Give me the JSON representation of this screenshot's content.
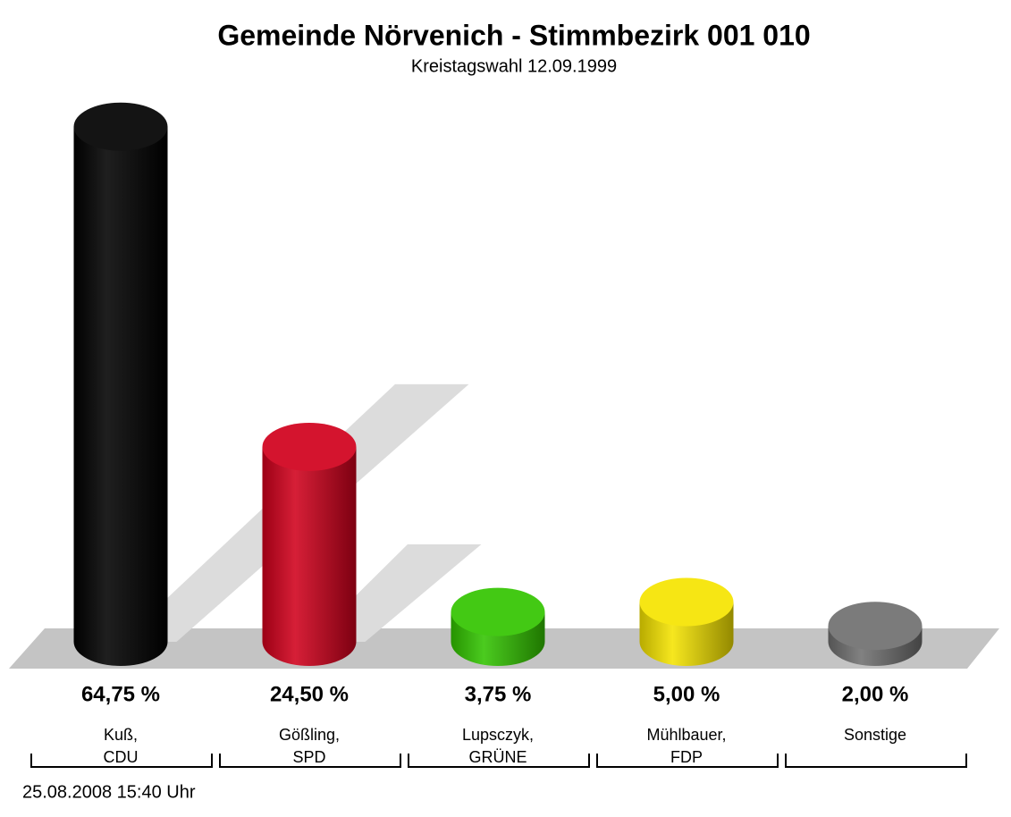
{
  "chart_data": {
    "type": "bar",
    "title": "Gemeinde Nörvenich - Stimmbezirk 001 010",
    "subtitle": "Kreistagswahl 12.09.1999",
    "categories": [
      [
        "Kuß,",
        "CDU"
      ],
      [
        "Gößling,",
        "SPD"
      ],
      [
        "Lupsczyk,",
        "GRÜNE"
      ],
      [
        "Mühlbauer,",
        "FDP"
      ],
      [
        "Sonstige"
      ]
    ],
    "values": [
      64.75,
      24.5,
      3.75,
      5.0,
      2.0
    ],
    "value_labels": [
      "64,75 %",
      "24,50 %",
      "3,75 %",
      "5,00 %",
      "2,00 %"
    ],
    "colors": [
      "#000000",
      "#d0001c",
      "#33c400",
      "#f5e400",
      "#707070"
    ],
    "footer": "25.08.2008 15:40 Uhr"
  }
}
